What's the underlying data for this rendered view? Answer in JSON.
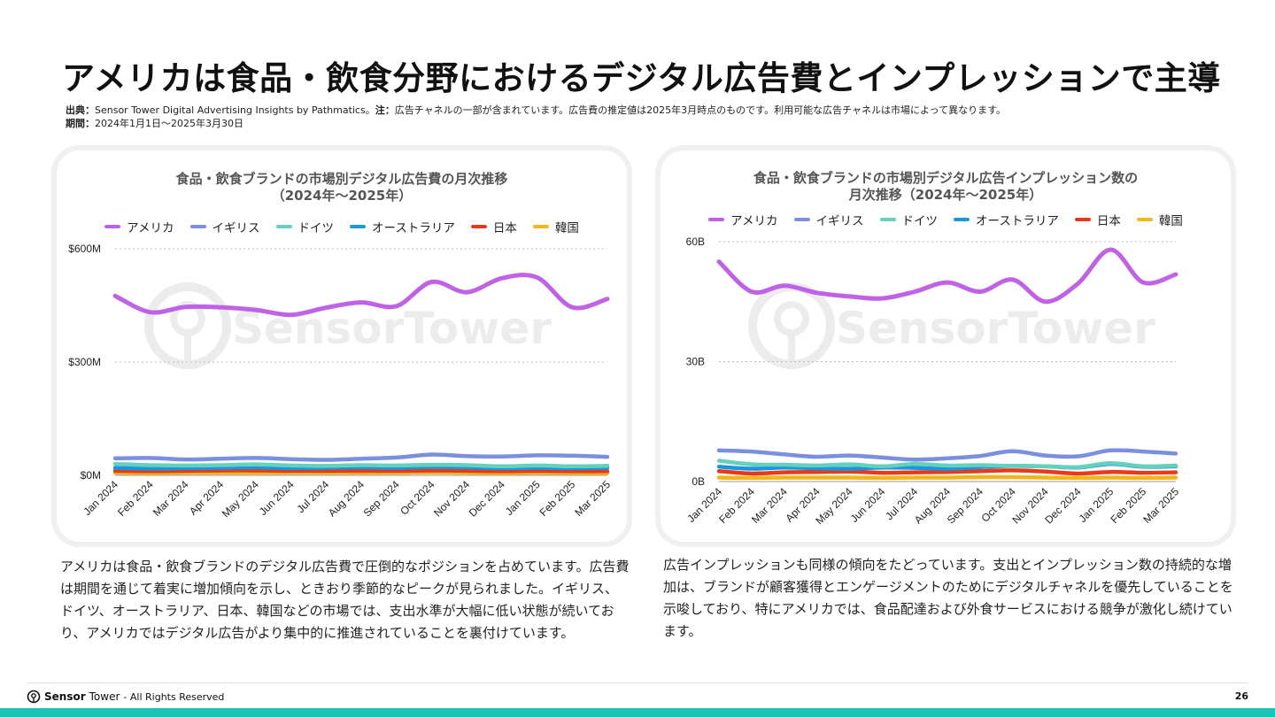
{
  "title": "アメリカは食品・飲食分野におけるデジタル広告費とインプレッションで主導",
  "meta": {
    "source_label": "出典：",
    "source_text": "Sensor Tower Digital Advertising Insights by Pathmatics。",
    "note_label": "注：",
    "note_text": "広告チャネルの一部が含まれています。広告費の推定値は2025年3月時点のものです。利用可能な広告チャネルは市場によって異なります。",
    "period_label": "期間：",
    "period_text": "2024年1月1日〜2025年3月30日"
  },
  "watermark": "SensorTower",
  "series_colors": {
    "アメリカ": "#c062e6",
    "イギリス": "#7b8fe0",
    "ドイツ": "#66d0bf",
    "オーストラリア": "#1a96dc",
    "日本": "#e8391b",
    "韓国": "#f0b61a"
  },
  "chart_data": [
    {
      "type": "line",
      "title_line1": "食品・飲食ブランドの市場別デジタル広告費の月次推移",
      "title_line2": "（2024年〜2025年）",
      "categories": [
        "Jan 2024",
        "Feb 2024",
        "Mar 2024",
        "Apr 2024",
        "May 2024",
        "Jun 2024",
        "Jul 2024",
        "Aug 2024",
        "Sep 2024",
        "Oct 2024",
        "Nov 2024",
        "Dec 2024",
        "Jan 2025",
        "Feb 2025",
        "Mar 2025"
      ],
      "yticks": [
        {
          "value": 0,
          "label": "$0M"
        },
        {
          "value": 300,
          "label": "$300M"
        },
        {
          "value": 600,
          "label": "$600M"
        }
      ],
      "ylim": [
        0,
        600
      ],
      "legend_position": "top",
      "grid": true,
      "series": [
        {
          "name": "アメリカ",
          "values": [
            475,
            432,
            446,
            445,
            438,
            425,
            444,
            458,
            448,
            512,
            485,
            522,
            524,
            445,
            467
          ]
        },
        {
          "name": "イギリス",
          "values": [
            45,
            46,
            42,
            44,
            46,
            43,
            41,
            44,
            47,
            55,
            51,
            50,
            53,
            52,
            49
          ]
        },
        {
          "name": "ドイツ",
          "values": [
            30,
            27,
            26,
            27,
            29,
            26,
            25,
            27,
            26,
            28,
            27,
            24,
            26,
            24,
            25
          ]
        },
        {
          "name": "オーストラリア",
          "values": [
            20,
            18,
            19,
            20,
            21,
            19,
            20,
            21,
            20,
            22,
            21,
            19,
            20,
            19,
            20
          ]
        },
        {
          "name": "日本",
          "values": [
            12,
            11,
            12,
            13,
            13,
            12,
            12,
            12,
            12,
            13,
            12,
            11,
            12,
            11,
            11
          ]
        },
        {
          "name": "韓国",
          "values": [
            7,
            6,
            7,
            7,
            7,
            7,
            7,
            7,
            7,
            8,
            7,
            6,
            7,
            6,
            6
          ]
        }
      ]
    },
    {
      "type": "line",
      "title_line1": "食品・飲食ブランドの市場別デジタル広告インプレッション数の",
      "title_line2": "月次推移（2024年〜2025年）",
      "categories": [
        "Jan 2024",
        "Feb 2024",
        "Mar 2024",
        "Apr 2024",
        "May 2024",
        "Jun 2024",
        "Jul 2024",
        "Aug 2024",
        "Sep 2024",
        "Oct 2024",
        "Nov 2024",
        "Dec 2024",
        "Jan 2025",
        "Feb 2025",
        "Mar 2025"
      ],
      "yticks": [
        {
          "value": 0,
          "label": "0B"
        },
        {
          "value": 30,
          "label": "30B"
        },
        {
          "value": 60,
          "label": "60B"
        }
      ],
      "ylim": [
        0,
        60
      ],
      "legend_position": "top",
      "grid": true,
      "series": [
        {
          "name": "アメリカ",
          "values": [
            55,
            47.5,
            49,
            47.2,
            46.3,
            45.8,
            47.5,
            49.8,
            47.5,
            50.5,
            45,
            49.5,
            58,
            49.8,
            51.8
          ]
        },
        {
          "name": "イギリス",
          "values": [
            7.8,
            7.5,
            6.8,
            6.2,
            6.5,
            6.0,
            5.5,
            5.8,
            6.4,
            7.6,
            6.5,
            6.3,
            7.8,
            7.5,
            7.0
          ]
        },
        {
          "name": "ドイツ",
          "values": [
            5.2,
            4.3,
            4.2,
            4.0,
            4.3,
            3.8,
            4.4,
            4.0,
            4.1,
            3.9,
            3.8,
            3.6,
            4.6,
            3.8,
            4.0
          ]
        },
        {
          "name": "オーストラリア",
          "values": [
            3.7,
            3.2,
            3.5,
            3.3,
            3.2,
            3.5,
            3.4,
            3.2,
            3.6,
            3.9,
            3.8,
            3.5,
            4.4,
            3.7,
            3.8
          ]
        },
        {
          "name": "日本",
          "values": [
            2.6,
            2.0,
            2.3,
            2.4,
            2.5,
            2.2,
            2.3,
            2.4,
            2.6,
            2.8,
            2.5,
            2.0,
            2.4,
            2.2,
            2.3
          ]
        },
        {
          "name": "韓国",
          "values": [
            1.0,
            0.9,
            1.0,
            1.0,
            1.0,
            0.9,
            1.0,
            1.0,
            1.1,
            1.1,
            1.0,
            0.9,
            1.0,
            0.9,
            1.0
          ]
        }
      ]
    }
  ],
  "body_left": "アメリカは食品・飲食ブランドのデジタル広告費で圧倒的なポジションを占めています。広告費は期間を通じて着実に増加傾向を示し、ときおり季節的なピークが見られました。イギリス、ドイツ、オーストラリア、日本、韓国などの市場では、支出水準が大幅に低い状態が続いており、アメリカではデジタル広告がより集中的に推進されていることを裏付けています。",
  "body_right": "広告インプレッションも同様の傾向をたどっています。支出とインプレッション数の持続的な増加は、ブランドが顧客獲得とエンゲージメントのためにデジタルチャネルを優先していることを示唆しており、特にアメリカでは、食品配達および外食サービスにおける競争が激化し続けています。",
  "footer": {
    "brand_sensor": "Sensor",
    "brand_tower": "Tower",
    "rights": " - All Rights Reserved",
    "page_number": "26"
  }
}
